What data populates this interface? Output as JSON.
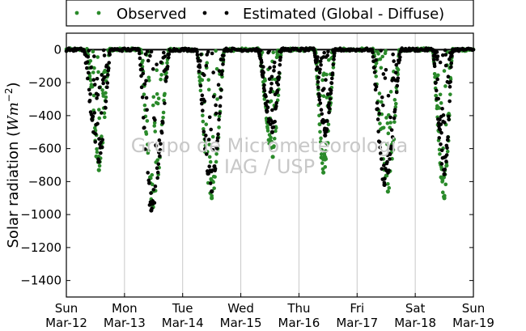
{
  "chart_data": {
    "type": "scatter",
    "title": "",
    "xlabel": "",
    "ylabel_main": "Solar radiation (",
    "ylabel_unit": "Wm",
    "ylabel_exp": "−2",
    "ylabel_close": ")",
    "ylim": [
      -1500,
      100
    ],
    "yticks": [
      0,
      -200,
      -400,
      -600,
      -800,
      -1000,
      -1200,
      -1400
    ],
    "ytick_labels": [
      "0",
      "−200",
      "−400",
      "−600",
      "−800",
      "−1000",
      "−1200",
      "−1400"
    ],
    "xlim_days": [
      "2017-03-12",
      "2017-03-19"
    ],
    "xticks": [
      {
        "day": "Sun",
        "date": "Mar-12"
      },
      {
        "day": "Mon",
        "date": "Mar-13"
      },
      {
        "day": "Tue",
        "date": "Mar-14"
      },
      {
        "day": "Wed",
        "date": "Mar-15"
      },
      {
        "day": "Thu",
        "date": "Mar-16"
      },
      {
        "day": "Fri",
        "date": "Mar-17"
      },
      {
        "day": "Sat",
        "date": "Mar-18"
      },
      {
        "day": "Sun",
        "date": "Mar-19"
      }
    ],
    "grid": "vertical",
    "legend_position": "top",
    "watermark_line1": "Grupo de Micrometeorologia",
    "watermark_line2": "IAG / USP",
    "series": [
      {
        "name": "Observed",
        "color": "#2a8a2a",
        "days": [
          {
            "start": 0.36,
            "end": 0.74,
            "peak": -730,
            "peak_at": 0.56
          },
          {
            "start": 1.28,
            "end": 1.76,
            "peak": -955,
            "peak_at": 1.49
          },
          {
            "start": 2.24,
            "end": 2.72,
            "peak": -900,
            "peak_at": 2.5
          },
          {
            "start": 3.32,
            "end": 3.7,
            "peak": -650,
            "peak_at": 3.55
          },
          {
            "start": 4.28,
            "end": 4.62,
            "peak": -745,
            "peak_at": 4.42
          },
          {
            "start": 5.28,
            "end": 5.74,
            "peak": -860,
            "peak_at": 5.53
          },
          {
            "start": 6.3,
            "end": 6.64,
            "peak": -900,
            "peak_at": 6.5
          }
        ]
      },
      {
        "name": "Estimated (Global - Diffuse)",
        "color": "#000000",
        "days": [
          {
            "start": 0.3,
            "end": 0.76,
            "peak": -680,
            "peak_at": 0.56
          },
          {
            "start": 1.25,
            "end": 1.78,
            "peak": -975,
            "peak_at": 1.46
          },
          {
            "start": 2.24,
            "end": 2.72,
            "peak": -860,
            "peak_at": 2.5
          },
          {
            "start": 3.3,
            "end": 3.7,
            "peak": -500,
            "peak_at": 3.54
          },
          {
            "start": 4.26,
            "end": 4.62,
            "peak": -520,
            "peak_at": 4.45
          },
          {
            "start": 5.26,
            "end": 5.76,
            "peak": -820,
            "peak_at": 5.47
          },
          {
            "start": 6.3,
            "end": 6.64,
            "peak": -755,
            "peak_at": 6.5
          }
        ]
      }
    ]
  }
}
